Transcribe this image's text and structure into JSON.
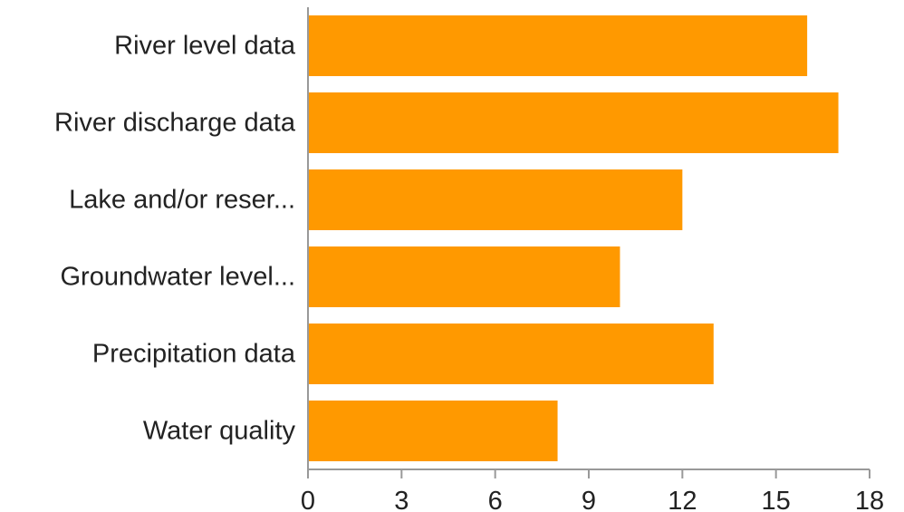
{
  "chart_data": {
    "type": "bar",
    "orientation": "horizontal",
    "categories": [
      "River level data",
      "River discharge data",
      "Lake and/or reser...",
      "Groundwater level...",
      "Precipitation data",
      "Water quality"
    ],
    "values": [
      16,
      17,
      12,
      10,
      13,
      8
    ],
    "xlim": [
      0,
      18
    ],
    "xticks": [
      0,
      3,
      6,
      9,
      12,
      15,
      18
    ],
    "xtick_labels": [
      "0",
      "3",
      "6",
      "9",
      "12",
      "15",
      "18"
    ],
    "grid": false,
    "legend": "none",
    "colors": {
      "bar": "#ff9900",
      "axis": "#999999",
      "text": "#222222"
    }
  }
}
